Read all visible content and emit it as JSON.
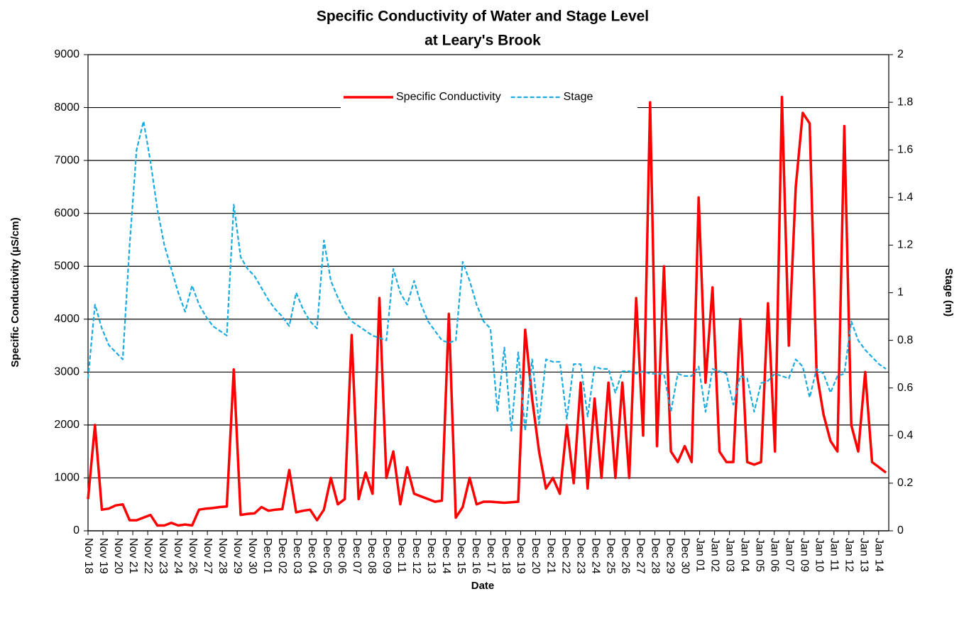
{
  "chart_data": {
    "type": "line",
    "title": [
      "Specific Conductivity of Water and Stage Level",
      "at Leary's Brook"
    ],
    "xlabel": "Date",
    "ylabel": "Specific Conductivity (µS/cm)",
    "y2label": "Stage (m)",
    "x": [
      0,
      0.5,
      1,
      1.5,
      2,
      2.5,
      3,
      3.5,
      4,
      4.5,
      5,
      5.5,
      6,
      6.5,
      7,
      7.5,
      8,
      8.5,
      9,
      9.5,
      10,
      10.5,
      11,
      11.5,
      12,
      12.5,
      13,
      13.5,
      14,
      14.5,
      15,
      15.5,
      16,
      16.5,
      17,
      17.5,
      18,
      18.5,
      19,
      19.5,
      20,
      20.5,
      21,
      21.5,
      22,
      22.5,
      23,
      23.5,
      24,
      24.5,
      25,
      25.5,
      26,
      26.5,
      27,
      27.5,
      28,
      28.5,
      29,
      29.5,
      30,
      30.5,
      31,
      31.5,
      32,
      32.5,
      33,
      33.5,
      34,
      34.5,
      35,
      35.5,
      36,
      36.5,
      37,
      37.5,
      38,
      38.5,
      39,
      39.5,
      40,
      40.5,
      41,
      41.5,
      42,
      42.5,
      43,
      43.5,
      44,
      44.5,
      45,
      45.5,
      46,
      46.5,
      47,
      47.5,
      48,
      48.5,
      49,
      49.5,
      50,
      50.5,
      51,
      51.5,
      52,
      52.5,
      53,
      53.5,
      54,
      54.5,
      55,
      55.5,
      56,
      56.5,
      57,
      57.5
    ],
    "series": [
      {
        "name": "Specific Conductivity",
        "color": "#ff0000",
        "dash": false,
        "axis": "y",
        "values": [
          600,
          2000,
          400,
          420,
          480,
          500,
          200,
          200,
          250,
          300,
          100,
          100,
          150,
          100,
          120,
          100,
          400,
          420,
          430,
          450,
          460,
          3050,
          300,
          320,
          330,
          450,
          380,
          400,
          410,
          1150,
          350,
          380,
          400,
          200,
          400,
          1000,
          500,
          600,
          3700,
          600,
          1100,
          700,
          4400,
          1000,
          1500,
          500,
          1200,
          700,
          650,
          600,
          550,
          570,
          4100,
          250,
          450,
          1000,
          500,
          550,
          550,
          540,
          530,
          540,
          550,
          3800,
          2500,
          1500,
          800,
          1000,
          700,
          2000,
          900,
          2800,
          800,
          2500,
          1000,
          2800,
          1000,
          2800,
          1000,
          4400,
          1800,
          8100,
          1600,
          5000,
          1500,
          1300,
          1600,
          1300,
          6300,
          2800,
          4600,
          1500,
          1300,
          1300,
          4000,
          1300,
          1250,
          1300,
          4300,
          1500,
          8200,
          3500,
          6500,
          7900,
          7700,
          3000,
          2200,
          1700,
          1500,
          7650,
          2000,
          1500,
          3000,
          1300,
          1200,
          1100
        ]
      },
      {
        "name": "Stage",
        "color": "#1aabe0",
        "dash": true,
        "axis": "y2",
        "values": [
          0.64,
          0.95,
          0.85,
          0.78,
          0.75,
          0.72,
          1.2,
          1.6,
          1.72,
          1.55,
          1.35,
          1.2,
          1.1,
          1.0,
          0.92,
          1.03,
          0.95,
          0.9,
          0.86,
          0.84,
          0.82,
          1.37,
          1.15,
          1.1,
          1.07,
          1.02,
          0.97,
          0.93,
          0.9,
          0.86,
          1.0,
          0.93,
          0.88,
          0.85,
          1.22,
          1.05,
          0.98,
          0.92,
          0.88,
          0.86,
          0.84,
          0.82,
          0.81,
          0.8,
          1.1,
          1.0,
          0.95,
          1.05,
          0.95,
          0.88,
          0.84,
          0.8,
          0.79,
          0.8,
          1.13,
          1.05,
          0.95,
          0.88,
          0.85,
          0.5,
          0.77,
          0.42,
          0.75,
          0.42,
          0.72,
          0.45,
          0.72,
          0.71,
          0.71,
          0.47,
          0.7,
          0.7,
          0.48,
          0.69,
          0.68,
          0.68,
          0.58,
          0.67,
          0.67,
          0.66,
          0.67,
          0.66,
          0.66,
          0.66,
          0.5,
          0.66,
          0.65,
          0.65,
          0.69,
          0.5,
          0.68,
          0.67,
          0.66,
          0.53,
          0.65,
          0.64,
          0.5,
          0.62,
          0.63,
          0.66,
          0.65,
          0.64,
          0.72,
          0.69,
          0.56,
          0.68,
          0.66,
          0.58,
          0.65,
          0.66,
          0.88,
          0.8,
          0.76,
          0.73,
          0.7,
          0.68
        ]
      }
    ],
    "xlim": [
      0,
      57.7
    ],
    "xticks": [
      {
        "value": 0,
        "label": "Nov 18"
      },
      {
        "value": 1.075,
        "label": "Nov 19"
      },
      {
        "value": 2.15,
        "label": "Nov 20"
      },
      {
        "value": 3.225,
        "label": "Nov 21"
      },
      {
        "value": 4.3,
        "label": "Nov 22"
      },
      {
        "value": 5.375,
        "label": "Nov 23"
      },
      {
        "value": 6.45,
        "label": "Nov 24"
      },
      {
        "value": 7.525,
        "label": "Nov 26"
      },
      {
        "value": 8.6,
        "label": "Nov 27"
      },
      {
        "value": 9.675,
        "label": "Nov 28"
      },
      {
        "value": 10.75,
        "label": "Nov 29"
      },
      {
        "value": 11.825,
        "label": "Nov 30"
      },
      {
        "value": 12.9,
        "label": "Dec 01"
      },
      {
        "value": 13.975,
        "label": "Dec 02"
      },
      {
        "value": 15.05,
        "label": "Dec 03"
      },
      {
        "value": 16.125,
        "label": "Dec 04"
      },
      {
        "value": 17.2,
        "label": "Dec 05"
      },
      {
        "value": 18.275,
        "label": "Dec 06"
      },
      {
        "value": 19.35,
        "label": "Dec 07"
      },
      {
        "value": 20.425,
        "label": "Dec 08"
      },
      {
        "value": 21.5,
        "label": "Dec 09"
      },
      {
        "value": 22.575,
        "label": "Dec 11"
      },
      {
        "value": 23.65,
        "label": "Dec 12"
      },
      {
        "value": 24.725,
        "label": "Dec 13"
      },
      {
        "value": 25.8,
        "label": "Dec 14"
      },
      {
        "value": 26.875,
        "label": "Dec 15"
      },
      {
        "value": 27.95,
        "label": "Dec 16"
      },
      {
        "value": 29.025,
        "label": "Dec 17"
      },
      {
        "value": 30.1,
        "label": "Dec 18"
      },
      {
        "value": 31.175,
        "label": "Dec 19"
      },
      {
        "value": 32.25,
        "label": "Dec 20"
      },
      {
        "value": 33.325,
        "label": "Dec 21"
      },
      {
        "value": 34.4,
        "label": "Dec 22"
      },
      {
        "value": 35.475,
        "label": "Dec 23"
      },
      {
        "value": 36.55,
        "label": "Dec 24"
      },
      {
        "value": 37.625,
        "label": "Dec 25"
      },
      {
        "value": 38.7,
        "label": "Dec 26"
      },
      {
        "value": 39.775,
        "label": "Dec 27"
      },
      {
        "value": 40.85,
        "label": "Dec 28"
      },
      {
        "value": 41.925,
        "label": "Dec 29"
      },
      {
        "value": 43,
        "label": "Dec 30"
      },
      {
        "value": 44.075,
        "label": "Jan 01"
      },
      {
        "value": 45.15,
        "label": "Jan 02"
      },
      {
        "value": 46.225,
        "label": "Jan 03"
      },
      {
        "value": 47.3,
        "label": "Jan 04"
      },
      {
        "value": 48.375,
        "label": "Jan 05"
      },
      {
        "value": 49.45,
        "label": "Jan 06"
      },
      {
        "value": 50.525,
        "label": "Jan 07"
      },
      {
        "value": 51.6,
        "label": "Jan 09"
      },
      {
        "value": 52.675,
        "label": "Jan 10"
      },
      {
        "value": 53.75,
        "label": "Jan 11"
      },
      {
        "value": 54.825,
        "label": "Jan 12"
      },
      {
        "value": 55.9,
        "label": "Jan 13"
      },
      {
        "value": 56.975,
        "label": "Jan 14"
      }
    ],
    "ylim": [
      0,
      9000
    ],
    "yticks": [
      0,
      1000,
      2000,
      3000,
      4000,
      5000,
      6000,
      7000,
      8000,
      9000
    ],
    "y2lim": [
      0,
      2
    ],
    "y2ticks": [
      0,
      0.2,
      0.4,
      0.6,
      0.8,
      1,
      1.2,
      1.4,
      1.6,
      1.8,
      2
    ],
    "grid": true,
    "legend": "top"
  }
}
